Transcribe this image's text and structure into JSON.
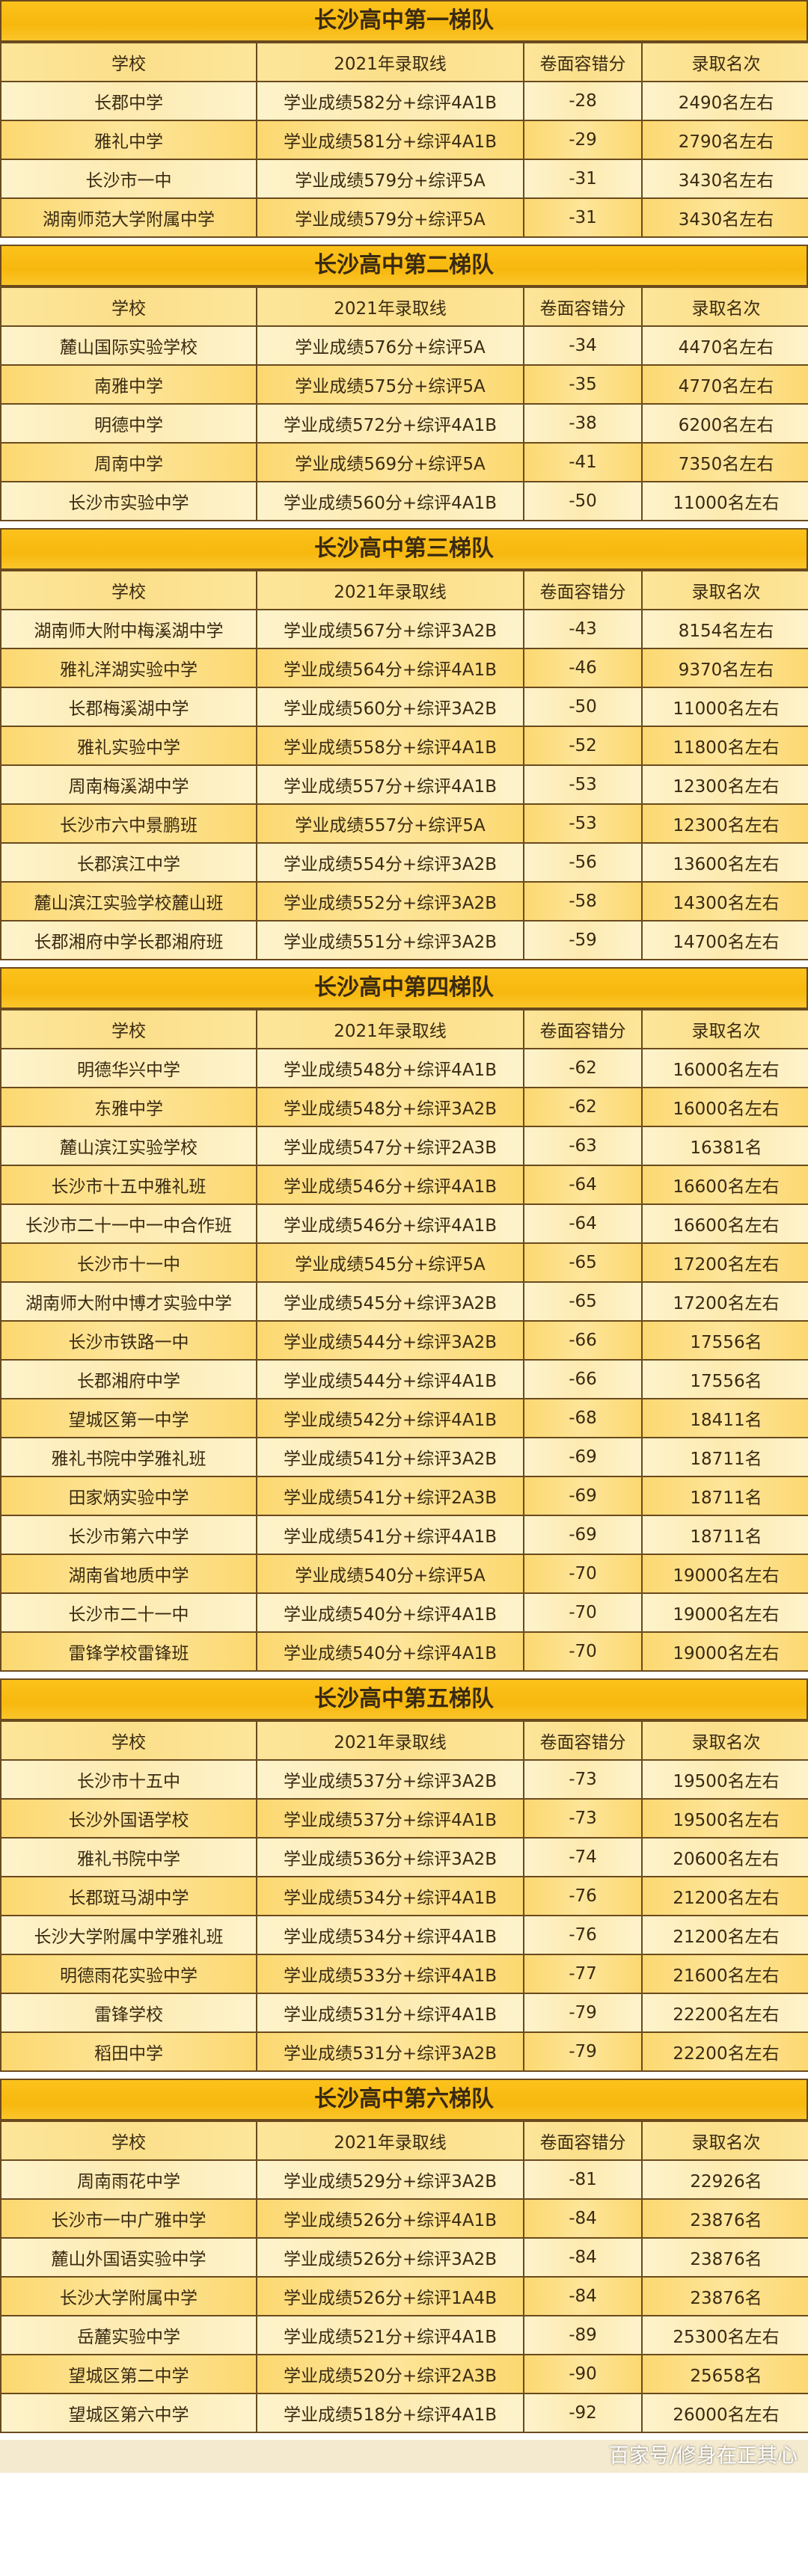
{
  "columns": [
    "学校",
    "2021年录取线",
    "卷面容错分",
    "录取名次"
  ],
  "colors": {
    "title_bg": "#f9bd16",
    "header_bg": "#fde59a",
    "row_light": "#fdf0c0",
    "row_dark": "#fcd870",
    "border": "#6b4a1e",
    "text": "#3a2a12"
  },
  "sections": [
    {
      "title": "长沙高中第一梯队",
      "rows": [
        [
          "长郡中学",
          "学业成绩582分+综评4A1B",
          "-28",
          "2490名左右"
        ],
        [
          "雅礼中学",
          "学业成绩581分+综评4A1B",
          "-29",
          "2790名左右"
        ],
        [
          "长沙市一中",
          "学业成绩579分+综评5A",
          "-31",
          "3430名左右"
        ],
        [
          "湖南师范大学附属中学",
          "学业成绩579分+综评5A",
          "-31",
          "3430名左右"
        ]
      ]
    },
    {
      "title": "长沙高中第二梯队",
      "rows": [
        [
          "麓山国际实验学校",
          "学业成绩576分+综评5A",
          "-34",
          "4470名左右"
        ],
        [
          "南雅中学",
          "学业成绩575分+综评5A",
          "-35",
          "4770名左右"
        ],
        [
          "明德中学",
          "学业成绩572分+综评4A1B",
          "-38",
          "6200名左右"
        ],
        [
          "周南中学",
          "学业成绩569分+综评5A",
          "-41",
          "7350名左右"
        ],
        [
          "长沙市实验中学",
          "学业成绩560分+综评4A1B",
          "-50",
          "11000名左右"
        ]
      ]
    },
    {
      "title": "长沙高中第三梯队",
      "rows": [
        [
          "湖南师大附中梅溪湖中学",
          "学业成绩567分+综评3A2B",
          "-43",
          "8154名左右"
        ],
        [
          "雅礼洋湖实验中学",
          "学业成绩564分+综评4A1B",
          "-46",
          "9370名左右"
        ],
        [
          "长郡梅溪湖中学",
          "学业成绩560分+综评3A2B",
          "-50",
          "11000名左右"
        ],
        [
          "雅礼实验中学",
          "学业成绩558分+综评4A1B",
          "-52",
          "11800名左右"
        ],
        [
          "周南梅溪湖中学",
          "学业成绩557分+综评4A1B",
          "-53",
          "12300名左右"
        ],
        [
          "长沙市六中景鹏班",
          "学业成绩557分+综评5A",
          "-53",
          "12300名左右"
        ],
        [
          "长郡滨江中学",
          "学业成绩554分+综评3A2B",
          "-56",
          "13600名左右"
        ],
        [
          "麓山滨江实验学校麓山班",
          "学业成绩552分+综评3A2B",
          "-58",
          "14300名左右"
        ],
        [
          "长郡湘府中学长郡湘府班",
          "学业成绩551分+综评3A2B",
          "-59",
          "14700名左右"
        ]
      ]
    },
    {
      "title": "长沙高中第四梯队",
      "rows": [
        [
          "明德华兴中学",
          "学业成绩548分+综评4A1B",
          "-62",
          "16000名左右"
        ],
        [
          "东雅中学",
          "学业成绩548分+综评3A2B",
          "-62",
          "16000名左右"
        ],
        [
          "麓山滨江实验学校",
          "学业成绩547分+综评2A3B",
          "-63",
          "16381名"
        ],
        [
          "长沙市十五中雅礼班",
          "学业成绩546分+综评4A1B",
          "-64",
          "16600名左右"
        ],
        [
          "长沙市二十一中一中合作班",
          "学业成绩546分+综评4A1B",
          "-64",
          "16600名左右"
        ],
        [
          "长沙市十一中",
          "学业成绩545分+综评5A",
          "-65",
          "17200名左右"
        ],
        [
          "湖南师大附中博才实验中学",
          "学业成绩545分+综评3A2B",
          "-65",
          "17200名左右"
        ],
        [
          "长沙市铁路一中",
          "学业成绩544分+综评3A2B",
          "-66",
          "17556名"
        ],
        [
          "长郡湘府中学",
          "学业成绩544分+综评4A1B",
          "-66",
          "17556名"
        ],
        [
          "望城区第一中学",
          "学业成绩542分+综评4A1B",
          "-68",
          "18411名"
        ],
        [
          "雅礼书院中学雅礼班",
          "学业成绩541分+综评3A2B",
          "-69",
          "18711名"
        ],
        [
          "田家炳实验中学",
          "学业成绩541分+综评2A3B",
          "-69",
          "18711名"
        ],
        [
          "长沙市第六中学",
          "学业成绩541分+综评4A1B",
          "-69",
          "18711名"
        ],
        [
          "湖南省地质中学",
          "学业成绩540分+综评5A",
          "-70",
          "19000名左右"
        ],
        [
          "长沙市二十一中",
          "学业成绩540分+综评4A1B",
          "-70",
          "19000名左右"
        ],
        [
          "雷锋学校雷锋班",
          "学业成绩540分+综评4A1B",
          "-70",
          "19000名左右"
        ]
      ]
    },
    {
      "title": "长沙高中第五梯队",
      "rows": [
        [
          "长沙市十五中",
          "学业成绩537分+综评3A2B",
          "-73",
          "19500名左右"
        ],
        [
          "长沙外国语学校",
          "学业成绩537分+综评4A1B",
          "-73",
          "19500名左右"
        ],
        [
          "雅礼书院中学",
          "学业成绩536分+综评3A2B",
          "-74",
          "20600名左右"
        ],
        [
          "长郡斑马湖中学",
          "学业成绩534分+综评4A1B",
          "-76",
          "21200名左右"
        ],
        [
          "长沙大学附属中学雅礼班",
          "学业成绩534分+综评4A1B",
          "-76",
          "21200名左右"
        ],
        [
          "明德雨花实验中学",
          "学业成绩533分+综评4A1B",
          "-77",
          "21600名左右"
        ],
        [
          "雷锋学校",
          "学业成绩531分+综评4A1B",
          "-79",
          "22200名左右"
        ],
        [
          "稻田中学",
          "学业成绩531分+综评3A2B",
          "-79",
          "22200名左右"
        ]
      ]
    },
    {
      "title": "长沙高中第六梯队",
      "rows": [
        [
          "周南雨花中学",
          "学业成绩529分+综评3A2B",
          "-81",
          "22926名"
        ],
        [
          "长沙市一中广雅中学",
          "学业成绩526分+综评4A1B",
          "-84",
          "23876名"
        ],
        [
          "麓山外国语实验中学",
          "学业成绩526分+综评3A2B",
          "-84",
          "23876名"
        ],
        [
          "长沙大学附属中学",
          "学业成绩526分+综评1A4B",
          "-84",
          "23876名"
        ],
        [
          "岳麓实验中学",
          "学业成绩521分+综评4A1B",
          "-89",
          "25300名左右"
        ],
        [
          "望城区第二中学",
          "学业成绩520分+综评2A3B",
          "-90",
          "25658名"
        ],
        [
          "望城区第六中学",
          "学业成绩518分+综评4A1B",
          "-92",
          "26000名左右"
        ]
      ]
    }
  ],
  "watermark": "百家号/修身在正其心"
}
